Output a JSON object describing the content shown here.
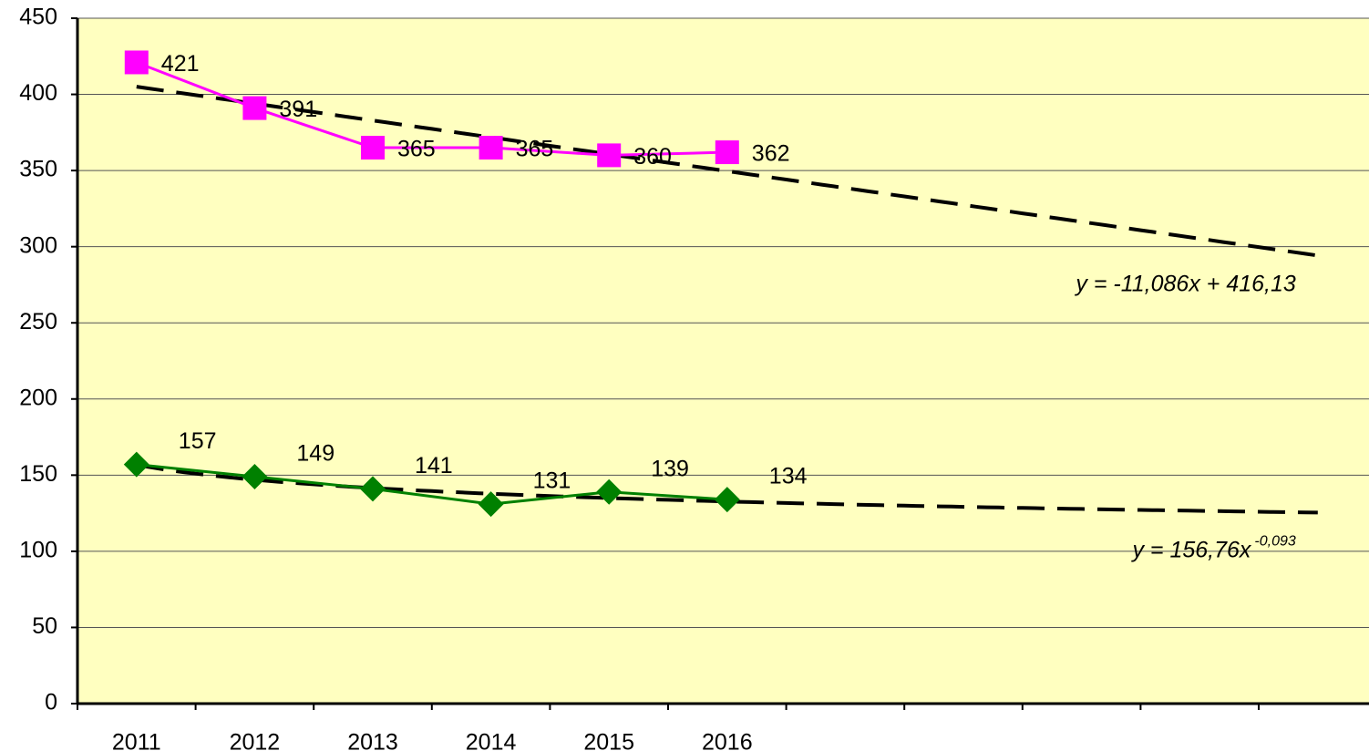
{
  "chart_data": {
    "type": "line",
    "categories": [
      "2011",
      "2012",
      "2013",
      "2014",
      "2015",
      "2016",
      null,
      null,
      null,
      null,
      null
    ],
    "series": [
      {
        "name": null,
        "color": "#ff00ff",
        "marker": "square",
        "values": [
          421,
          391,
          365,
          365,
          360,
          362,
          null,
          null,
          null,
          null,
          null
        ],
        "trendline": {
          "type": "linear",
          "label": "y = -11,086x + 416,13"
        }
      },
      {
        "name": null,
        "color": "#008000",
        "marker": "diamond",
        "values": [
          157,
          149,
          141,
          131,
          139,
          134,
          null,
          null,
          null,
          null,
          null
        ],
        "trendline": {
          "type": "power",
          "label": "y = 156,76x",
          "superscript": "-0,093"
        }
      }
    ],
    "ylim": [
      0,
      450
    ],
    "yticks": [
      0,
      50,
      100,
      150,
      200,
      250,
      300,
      350,
      400,
      450
    ],
    "grid": true,
    "background": "#ffffc0"
  }
}
